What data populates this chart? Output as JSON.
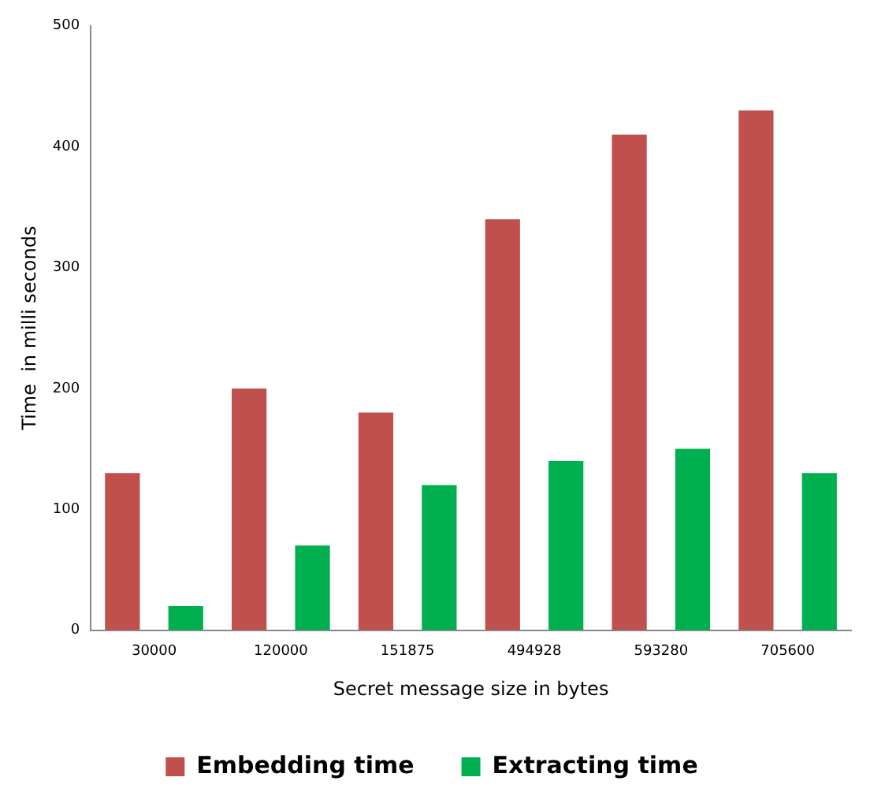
{
  "chart_data": {
    "type": "bar",
    "xlabel": "Secret message size in bytes",
    "ylabel": "Time  in milli seconds",
    "categories": [
      "30000",
      "120000",
      "151875",
      "494928",
      "593280",
      "705600"
    ],
    "series": [
      {
        "name": "Embedding time",
        "color": "#c0504d",
        "values": [
          130,
          200,
          180,
          340,
          410,
          430
        ]
      },
      {
        "name": "Extracting time",
        "color": "#00b050",
        "values": [
          20,
          70,
          120,
          140,
          150,
          130
        ]
      }
    ],
    "ylim": [
      0,
      500
    ],
    "yticks": [
      0,
      100,
      200,
      300,
      400,
      500
    ],
    "grid": false,
    "legend": "bottom"
  }
}
